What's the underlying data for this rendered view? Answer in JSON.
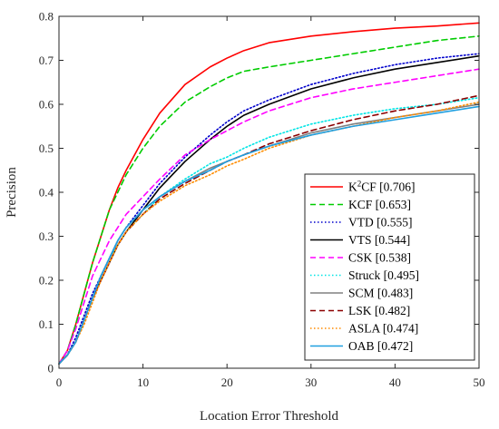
{
  "chart_data": {
    "type": "line",
    "xlabel": "Location Error Threshold",
    "ylabel": "Precision",
    "xlim": [
      0,
      50
    ],
    "ylim": [
      0,
      0.8
    ],
    "xticks": [
      0,
      10,
      20,
      30,
      40,
      50
    ],
    "yticks": [
      0,
      0.1,
      0.2,
      0.3,
      0.4,
      0.5,
      0.6,
      0.7,
      0.8
    ],
    "xtick_labels": [
      "0",
      "10",
      "20",
      "30",
      "40",
      "50"
    ],
    "ytick_labels": [
      "0",
      "0.1",
      "0.2",
      "0.3",
      "0.4",
      "0.5",
      "0.6",
      "0.7",
      "0.8"
    ],
    "grid": false,
    "legend_position": "bottom-right",
    "x": [
      0,
      1,
      2,
      3,
      4,
      5,
      6,
      7,
      8,
      10,
      12,
      15,
      18,
      20,
      22,
      25,
      30,
      35,
      40,
      45,
      50
    ],
    "series": [
      {
        "name": "K²CF",
        "name_main": "K",
        "name_sup": "2",
        "name_rest": "CF",
        "score": "[0.706]",
        "color": "#ff0000",
        "dash": "solid",
        "values": [
          0.01,
          0.04,
          0.1,
          0.17,
          0.24,
          0.3,
          0.36,
          0.41,
          0.45,
          0.52,
          0.58,
          0.645,
          0.685,
          0.705,
          0.722,
          0.74,
          0.755,
          0.765,
          0.773,
          0.778,
          0.785
        ]
      },
      {
        "name": "KCF",
        "score": "[0.653]",
        "color": "#00cc00",
        "dash": "dashed",
        "values": [
          0.01,
          0.04,
          0.1,
          0.17,
          0.24,
          0.3,
          0.36,
          0.4,
          0.44,
          0.5,
          0.55,
          0.605,
          0.64,
          0.66,
          0.675,
          0.685,
          0.7,
          0.715,
          0.73,
          0.745,
          0.755
        ]
      },
      {
        "name": "VTD",
        "score": "[0.555]",
        "color": "#0000cc",
        "dash": "dotted",
        "values": [
          0.01,
          0.03,
          0.07,
          0.12,
          0.17,
          0.21,
          0.25,
          0.29,
          0.32,
          0.37,
          0.42,
          0.48,
          0.53,
          0.56,
          0.585,
          0.61,
          0.645,
          0.67,
          0.69,
          0.705,
          0.715
        ]
      },
      {
        "name": "VTS",
        "score": "[0.544]",
        "color": "#000000",
        "dash": "solid",
        "values": [
          0.01,
          0.03,
          0.06,
          0.11,
          0.16,
          0.2,
          0.24,
          0.28,
          0.31,
          0.36,
          0.41,
          0.47,
          0.52,
          0.55,
          0.575,
          0.6,
          0.635,
          0.66,
          0.68,
          0.695,
          0.71
        ]
      },
      {
        "name": "CSK",
        "score": "[0.538]",
        "color": "#ff00ff",
        "dash": "dashed",
        "values": [
          0.01,
          0.04,
          0.09,
          0.15,
          0.21,
          0.25,
          0.29,
          0.32,
          0.35,
          0.39,
          0.43,
          0.485,
          0.52,
          0.54,
          0.56,
          0.585,
          0.615,
          0.635,
          0.65,
          0.665,
          0.68
        ]
      },
      {
        "name": "Struck",
        "score": "[0.495]",
        "color": "#00e5e5",
        "dash": "dotted",
        "values": [
          0.01,
          0.03,
          0.06,
          0.11,
          0.16,
          0.21,
          0.25,
          0.28,
          0.31,
          0.35,
          0.39,
          0.43,
          0.465,
          0.48,
          0.5,
          0.525,
          0.555,
          0.575,
          0.59,
          0.6,
          0.615
        ]
      },
      {
        "name": "SCM",
        "score": "[0.483]",
        "color": "#808080",
        "dash": "solid",
        "values": [
          0.01,
          0.03,
          0.06,
          0.11,
          0.16,
          0.21,
          0.25,
          0.29,
          0.32,
          0.36,
          0.39,
          0.425,
          0.455,
          0.47,
          0.485,
          0.505,
          0.535,
          0.555,
          0.57,
          0.585,
          0.6
        ]
      },
      {
        "name": "LSK",
        "score": "[0.482]",
        "color": "#8b0000",
        "dash": "dashed",
        "values": [
          0.01,
          0.03,
          0.06,
          0.11,
          0.16,
          0.2,
          0.24,
          0.28,
          0.31,
          0.35,
          0.385,
          0.42,
          0.45,
          0.47,
          0.485,
          0.51,
          0.54,
          0.565,
          0.585,
          0.6,
          0.62
        ]
      },
      {
        "name": "ASLA",
        "score": "[0.474]",
        "color": "#ff8c00",
        "dash": "dotted",
        "values": [
          0.01,
          0.03,
          0.06,
          0.1,
          0.15,
          0.2,
          0.24,
          0.28,
          0.31,
          0.35,
          0.38,
          0.415,
          0.44,
          0.46,
          0.475,
          0.5,
          0.53,
          0.55,
          0.57,
          0.585,
          0.605
        ]
      },
      {
        "name": "OAB",
        "score": "[0.472]",
        "color": "#1f9fe0",
        "dash": "solid",
        "values": [
          0.01,
          0.03,
          0.06,
          0.11,
          0.16,
          0.21,
          0.25,
          0.29,
          0.32,
          0.36,
          0.39,
          0.425,
          0.45,
          0.47,
          0.485,
          0.505,
          0.53,
          0.55,
          0.565,
          0.58,
          0.595
        ]
      }
    ]
  }
}
